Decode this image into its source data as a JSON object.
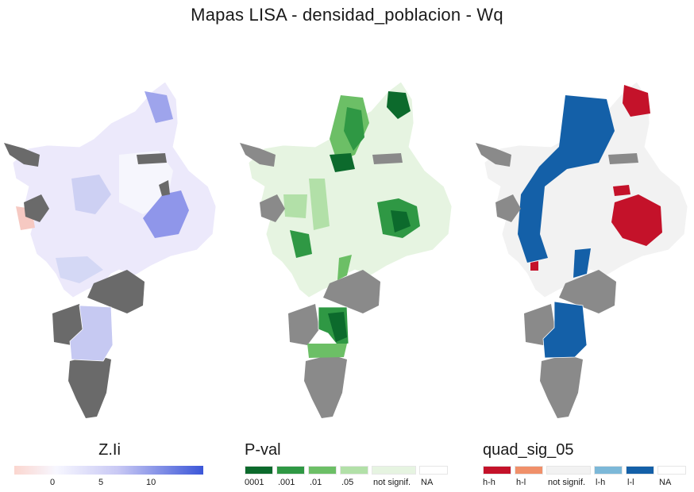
{
  "title": "Mapas LISA - densidad_poblacion - Wq",
  "map_panels": [
    {
      "name": "zli-map",
      "variable": "Z.Ii"
    },
    {
      "name": "pval-map",
      "variable": "P-val"
    },
    {
      "name": "quad-map",
      "variable": "quad_sig_05"
    }
  ],
  "legends": {
    "zli": {
      "title": "Z.Ii",
      "ticks": [
        "0",
        "5",
        "10"
      ],
      "colors": {
        "low": "#fbd6cf",
        "mid": "#f7f7ff",
        "high": "#3b56d8"
      }
    },
    "pval": {
      "title": "P-val",
      "classes": [
        {
          "label": "0001",
          "color": "#0c6a2c"
        },
        {
          "label": ".001",
          "color": "#2f9844"
        },
        {
          "label": ".01",
          "color": "#6cbf66"
        },
        {
          "label": ".05",
          "color": "#b2e0a8"
        },
        {
          "label": "not signif.",
          "color": "#e6f4e1"
        },
        {
          "label": "NA",
          "color": "#ffffff"
        }
      ]
    },
    "quad": {
      "title": "quad_sig_05",
      "classes": [
        {
          "label": "h-h",
          "color": "#c4122a"
        },
        {
          "label": "h-l",
          "color": "#f0906a"
        },
        {
          "label": "not signif.",
          "color": "#f2f2f2"
        },
        {
          "label": "l-h",
          "color": "#7cb8d8"
        },
        {
          "label": "l-l",
          "color": "#1460a8"
        },
        {
          "label": "NA",
          "color": "#ffffff"
        }
      ]
    }
  },
  "colors": {
    "no_data_gray": "#6a6a6a",
    "mid_gray": "#8a8a8a",
    "boundary": "#ffffff"
  }
}
